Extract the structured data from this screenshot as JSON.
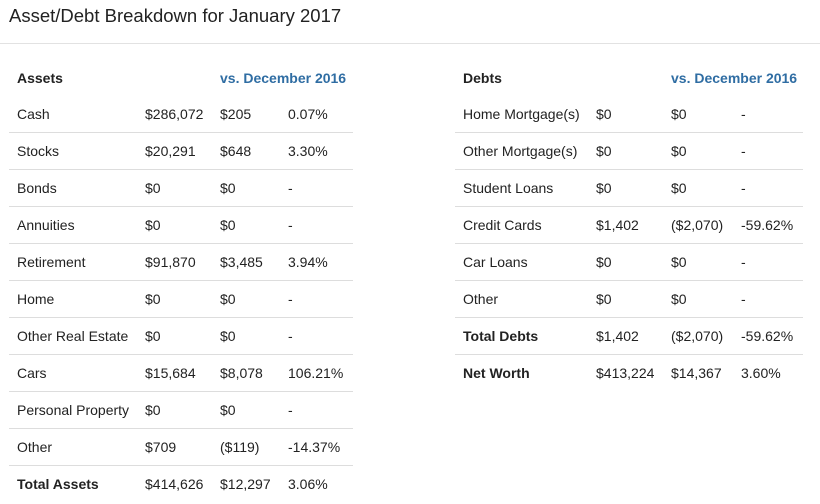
{
  "title": "Asset/Debt Breakdown for January 2017",
  "assets": {
    "header": "Assets",
    "comparison_header": "vs. December 2016",
    "rows": [
      {
        "label": "Cash",
        "value": "$286,072",
        "change": "$205",
        "change_negative": true,
        "pct": "0.07%",
        "pct_negative": true
      },
      {
        "label": "Stocks",
        "value": "$20,291",
        "change": "$648",
        "change_negative": false,
        "pct": "3.30%",
        "pct_negative": false
      },
      {
        "label": "Bonds",
        "value": "$0",
        "change": "$0",
        "change_negative": false,
        "pct": "-",
        "pct_negative": false
      },
      {
        "label": "Annuities",
        "value": "$0",
        "change": "$0",
        "change_negative": false,
        "pct": "-",
        "pct_negative": false
      },
      {
        "label": "Retirement",
        "value": "$91,870",
        "change": "$3,485",
        "change_negative": false,
        "pct": "3.94%",
        "pct_negative": false
      },
      {
        "label": "Home",
        "value": "$0",
        "change": "$0",
        "change_negative": false,
        "pct": "-",
        "pct_negative": false
      },
      {
        "label": "Other Real Estate",
        "value": "$0",
        "change": "$0",
        "change_negative": false,
        "pct": "-",
        "pct_negative": false
      },
      {
        "label": "Cars",
        "value": "$15,684",
        "change": "$8,078",
        "change_negative": false,
        "pct": "106.21%",
        "pct_negative": false
      },
      {
        "label": "Personal Property",
        "value": "$0",
        "change": "$0",
        "change_negative": false,
        "pct": "-",
        "pct_negative": false
      },
      {
        "label": "Other",
        "value": "$709",
        "change": "($119)",
        "change_negative": true,
        "pct": "-14.37%",
        "pct_negative": true
      }
    ],
    "total": {
      "label": "Total Assets",
      "value": "$414,626",
      "change": "$12,297",
      "change_negative": true,
      "pct": "3.06%",
      "pct_negative": true
    }
  },
  "debts": {
    "header": "Debts",
    "comparison_header": "vs. December 2016",
    "rows": [
      {
        "label": "Home Mortgage(s)",
        "value": "$0",
        "change": "$0",
        "change_negative": true,
        "pct": "-",
        "pct_negative": true
      },
      {
        "label": "Other Mortgage(s)",
        "value": "$0",
        "change": "$0",
        "change_negative": false,
        "pct": "-",
        "pct_negative": false
      },
      {
        "label": "Student Loans",
        "value": "$0",
        "change": "$0",
        "change_negative": false,
        "pct": "-",
        "pct_negative": false
      },
      {
        "label": "Credit Cards",
        "value": "$1,402",
        "change": "($2,070)",
        "change_negative": true,
        "pct": "-59.62%",
        "pct_negative": true
      },
      {
        "label": "Car Loans",
        "value": "$0",
        "change": "$0",
        "change_negative": false,
        "pct": "-",
        "pct_negative": false
      },
      {
        "label": "Other",
        "value": "$0",
        "change": "$0",
        "change_negative": false,
        "pct": "-",
        "pct_negative": false
      }
    ],
    "total": {
      "label": "Total Debts",
      "value": "$1,402",
      "change": "($2,070)",
      "change_negative": true,
      "pct": "-59.62%",
      "pct_negative": true
    },
    "net_worth": {
      "label": "Net Worth",
      "value": "$413,224",
      "change": "$14,367",
      "change_negative": true,
      "pct": "3.60%",
      "pct_negative": true
    }
  },
  "colors": {
    "negative": "#cc0000",
    "comparison_header": "#2f6da3",
    "text": "#222222",
    "rule": "#dddddd"
  }
}
